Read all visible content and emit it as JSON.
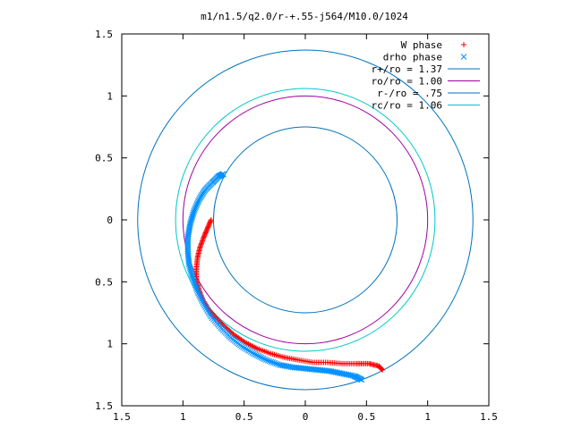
{
  "chart_data": {
    "type": "scatter",
    "title": "m1/n1.5/q2.0/r-+.55-j564/M10.0/1024",
    "xlabel": "",
    "ylabel": "",
    "xlim": [
      -1.5,
      1.5
    ],
    "ylim": [
      -1.5,
      1.5
    ],
    "grid": false,
    "legend_position": "top-right",
    "x_ticks": [
      {
        "value": -1.5,
        "label": "1.5"
      },
      {
        "value": -1.0,
        "label": "1"
      },
      {
        "value": -0.5,
        "label": "0.5"
      },
      {
        "value": 0,
        "label": "0"
      },
      {
        "value": 0.5,
        "label": "0.5"
      },
      {
        "value": 1.0,
        "label": "1"
      },
      {
        "value": 1.5,
        "label": "1.5"
      }
    ],
    "y_ticks": [
      {
        "value": 1.5,
        "label": "1.5"
      },
      {
        "value": 1.0,
        "label": "1"
      },
      {
        "value": 0.5,
        "label": "0.5"
      },
      {
        "value": 0,
        "label": "0"
      },
      {
        "value": -0.5,
        "label": "0.5"
      },
      {
        "value": -1.0,
        "label": "1"
      },
      {
        "value": -1.5,
        "label": "1.5"
      }
    ],
    "series": [
      {
        "name": "W phase",
        "kind": "points",
        "marker": "plus",
        "color": "#ff0000",
        "x": [
          -0.77,
          -0.8,
          -0.83,
          -0.86,
          -0.88,
          -0.89,
          -0.89,
          -0.87,
          -0.84,
          -0.79,
          -0.73,
          -0.66,
          -0.58,
          -0.49,
          -0.39,
          -0.28,
          -0.17,
          -0.06,
          0.06,
          0.18,
          0.3,
          0.42,
          0.52,
          0.6,
          0.63
        ],
        "y": [
          0.0,
          -0.07,
          -0.14,
          -0.22,
          -0.3,
          -0.39,
          -0.48,
          -0.56,
          -0.64,
          -0.72,
          -0.79,
          -0.86,
          -0.93,
          -0.99,
          -1.04,
          -1.08,
          -1.11,
          -1.13,
          -1.15,
          -1.15,
          -1.16,
          -1.16,
          -1.16,
          -1.18,
          -1.21
        ]
      },
      {
        "name": "drho phase",
        "kind": "points",
        "marker": "cross",
        "color": "#0090ff",
        "x": [
          -0.67,
          -0.71,
          -0.76,
          -0.82,
          -0.87,
          -0.91,
          -0.94,
          -0.96,
          -0.96,
          -0.95,
          -0.92,
          -0.88,
          -0.83,
          -0.77,
          -0.69,
          -0.61,
          -0.52,
          -0.42,
          -0.32,
          -0.21,
          -0.1,
          0.0,
          0.1,
          0.2,
          0.3,
          0.4,
          0.46
        ],
        "y": [
          0.37,
          0.35,
          0.3,
          0.24,
          0.16,
          0.07,
          -0.03,
          -0.14,
          -0.25,
          -0.36,
          -0.47,
          -0.58,
          -0.68,
          -0.78,
          -0.87,
          -0.95,
          -1.02,
          -1.08,
          -1.13,
          -1.17,
          -1.19,
          -1.2,
          -1.21,
          -1.22,
          -1.24,
          -1.26,
          -1.29
        ]
      },
      {
        "name": "r+/ro = 1.37",
        "kind": "circle",
        "radius": 1.37,
        "color": "#0072bd"
      },
      {
        "name": "ro/ro = 1.00",
        "kind": "circle",
        "radius": 1.0,
        "color": "#a000a0"
      },
      {
        "name": "r-/ro = .75",
        "kind": "circle",
        "radius": 0.75,
        "color": "#0072bd"
      },
      {
        "name": "rc/ro = 1.06",
        "kind": "circle",
        "radius": 1.06,
        "color": "#00c8c8"
      }
    ]
  }
}
